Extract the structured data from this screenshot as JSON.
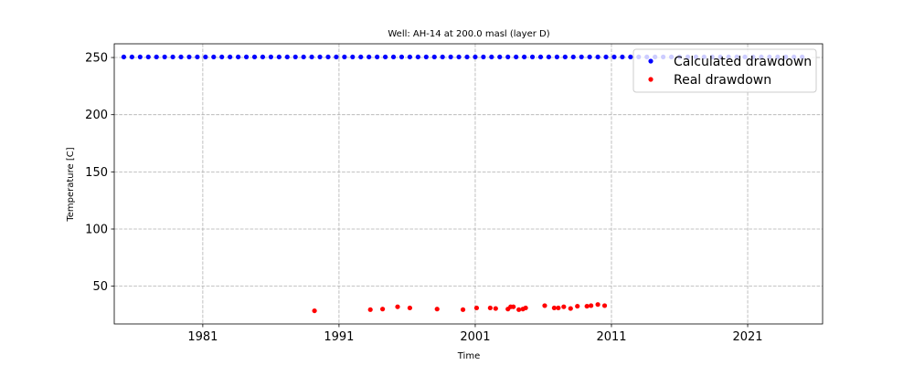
{
  "chart_data": {
    "type": "scatter",
    "title": "Well: AH-14 at 200.0 masl (layer D)",
    "xlabel": "Time",
    "ylabel": "Temperature [C]",
    "xlim": [
      1974.5,
      2026.5
    ],
    "ylim": [
      17,
      262
    ],
    "xticks": [
      1981,
      1991,
      2001,
      2011,
      2021
    ],
    "xtick_labels": [
      "1981",
      "1991",
      "2001",
      "2011",
      "2021"
    ],
    "yticks": [
      50,
      100,
      150,
      200,
      250
    ],
    "ytick_labels": [
      "50",
      "100",
      "150",
      "200",
      "250"
    ],
    "grid": true,
    "legend_position": "upper right",
    "series": [
      {
        "name": "Calculated drawdown",
        "color": "#0000ff",
        "x_start": 1975.2,
        "x_step": 0.6,
        "count": 84,
        "y_constant": 250.5
      },
      {
        "name": "Real drawdown",
        "color": "#ff0000",
        "x": [
          1989.2,
          1993.3,
          1994.2,
          1995.3,
          1996.2,
          1998.2,
          2000.1,
          2001.1,
          2002.1,
          2002.5,
          2003.4,
          2003.6,
          2003.8,
          2004.2,
          2004.5,
          2004.7,
          2006.1,
          2006.8,
          2007.1,
          2007.5,
          2008.0,
          2008.5,
          2009.2,
          2009.5,
          2010.0,
          2010.5
        ],
        "y": [
          28.5,
          29.5,
          30.0,
          32.0,
          31.0,
          30.0,
          29.5,
          31.0,
          31.0,
          30.5,
          30.0,
          32.0,
          32.0,
          29.5,
          30.0,
          31.0,
          33.0,
          31.0,
          31.0,
          32.0,
          30.5,
          32.5,
          32.5,
          33.0,
          34.0,
          33.0
        ]
      }
    ]
  }
}
